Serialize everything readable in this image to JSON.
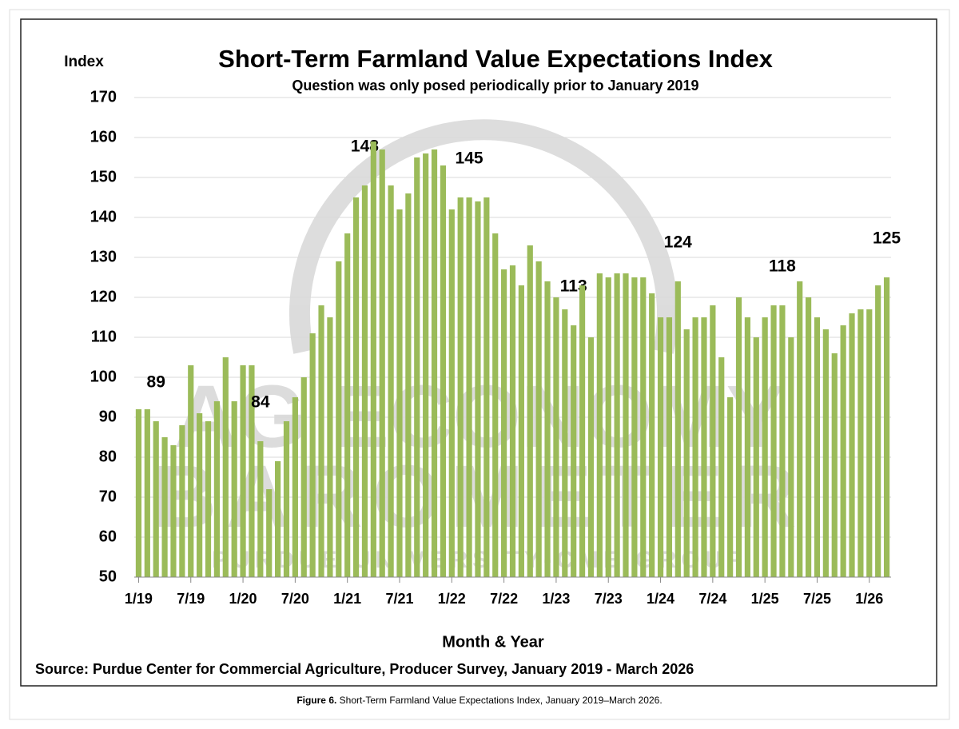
{
  "chart_data": {
    "type": "bar",
    "title": "Short-Term Farmland Value Expectations Index",
    "subtitle": "Question was only posed periodically prior to January 2019",
    "y_axis_label": "Index",
    "x_axis_label": "Month & Year",
    "source": "Source: Purdue Center for Commercial Agriculture, Producer Survey, January 2019 - March 2026",
    "watermark": [
      "AG ECONOMY",
      "BAROMETER",
      "PURDUE UNIVERSITY-CME GROUP"
    ],
    "caption": {
      "label": "Figure 6.",
      "text": "Short-Term Farmland Value Expectations Index, January 2019–March 2026."
    },
    "categories": [
      "1/19",
      null,
      null,
      null,
      null,
      null,
      "7/19",
      null,
      null,
      null,
      null,
      null,
      "1/20",
      null,
      null,
      null,
      null,
      null,
      "7/20",
      null,
      null,
      null,
      null,
      null,
      "1/21",
      null,
      null,
      null,
      null,
      null,
      "7/21",
      null,
      null,
      null,
      null,
      null,
      "1/22",
      null,
      null,
      null,
      null,
      null,
      "7/22",
      null,
      null,
      null,
      null,
      null,
      "1/23",
      null,
      null,
      null,
      null,
      null,
      "7/23",
      null,
      null,
      null,
      null,
      null,
      "1/24",
      null,
      null,
      null,
      null,
      null,
      "7/24",
      null,
      null,
      null,
      null,
      null,
      "1/25",
      null,
      null,
      null,
      null,
      null,
      "7/25",
      null,
      null,
      null,
      null,
      null,
      "1/26",
      null,
      null
    ],
    "values": [
      92,
      92,
      89,
      85,
      83,
      88,
      103,
      91,
      89,
      94,
      105,
      94,
      103,
      103,
      84,
      72,
      79,
      89,
      95,
      100,
      111,
      118,
      115,
      129,
      136,
      145,
      148,
      159,
      157,
      148,
      142,
      146,
      155,
      156,
      157,
      153,
      142,
      145,
      145,
      144,
      145,
      136,
      127,
      128,
      123,
      133,
      129,
      124,
      120,
      117,
      113,
      123,
      110,
      126,
      125,
      126,
      126,
      125,
      125,
      121,
      115,
      115,
      124,
      112,
      115,
      115,
      118,
      105,
      95,
      120,
      115,
      110,
      115,
      118,
      118,
      110,
      124,
      120,
      115,
      112,
      106,
      113,
      116,
      117,
      117,
      123,
      125
    ],
    "value_labels": [
      null,
      null,
      "89",
      null,
      null,
      null,
      null,
      null,
      null,
      null,
      null,
      null,
      null,
      null,
      "84",
      null,
      null,
      null,
      null,
      null,
      null,
      null,
      null,
      null,
      null,
      null,
      "148",
      null,
      null,
      null,
      null,
      null,
      null,
      null,
      null,
      null,
      null,
      null,
      "145",
      null,
      null,
      null,
      null,
      null,
      null,
      null,
      null,
      null,
      null,
      null,
      "113",
      null,
      null,
      null,
      null,
      null,
      null,
      null,
      null,
      null,
      null,
      null,
      "124",
      null,
      null,
      null,
      null,
      null,
      null,
      null,
      null,
      null,
      null,
      null,
      "118",
      null,
      null,
      null,
      null,
      null,
      null,
      null,
      null,
      null,
      null,
      null,
      "125"
    ],
    "color": "#9bbb59",
    "ylim": [
      50,
      170
    ],
    "yticks": [
      50,
      60,
      70,
      80,
      90,
      100,
      110,
      120,
      130,
      140,
      150,
      160,
      170
    ],
    "grid": true
  }
}
